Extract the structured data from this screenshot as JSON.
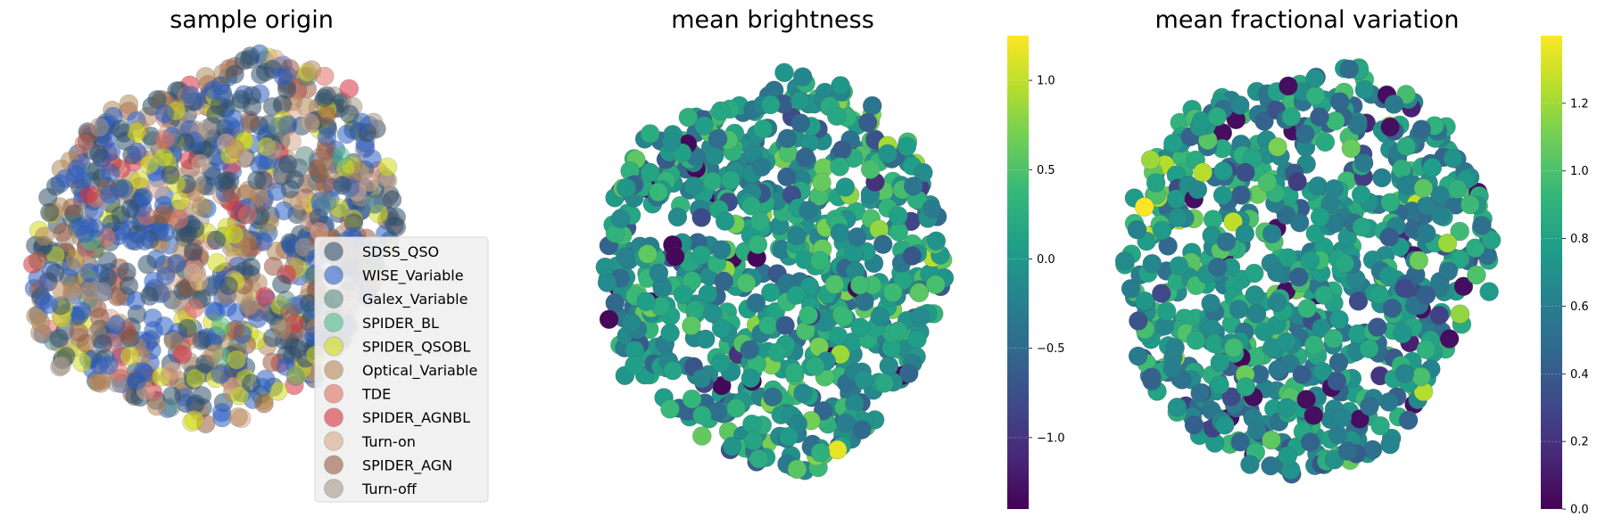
{
  "chart_data": [
    {
      "type": "scatter",
      "title": "sample origin",
      "legend_position": "lower-right",
      "categories": [
        {
          "name": "SDSS_QSO",
          "color": "#2f4f6a",
          "approx_share": 0.28
        },
        {
          "name": "WISE_Variable",
          "color": "#2b5fc4",
          "approx_share": 0.24
        },
        {
          "name": "Galex_Variable",
          "color": "#5c8a82",
          "approx_share": 0.03
        },
        {
          "name": "SPIDER_BL",
          "color": "#4fc08a",
          "approx_share": 0.01
        },
        {
          "name": "SPIDER_QSOBL",
          "color": "#d2dc1a",
          "approx_share": 0.09
        },
        {
          "name": "Optical_Variable",
          "color": "#b5895a",
          "approx_share": 0.12
        },
        {
          "name": "TDE",
          "color": "#e07060",
          "approx_share": 0.03
        },
        {
          "name": "SPIDER_AGNBL",
          "color": "#d83040",
          "approx_share": 0.03
        },
        {
          "name": "Turn-on",
          "color": "#d9a88a",
          "approx_share": 0.06
        },
        {
          "name": "SPIDER_AGN",
          "color": "#9a5a40",
          "approx_share": 0.08
        },
        {
          "name": "Turn-off",
          "color": "#a89888",
          "approx_share": 0.03
        }
      ]
    },
    {
      "type": "scatter",
      "title": "mean brightness",
      "colormap": "viridis",
      "colorbar": {
        "min": -1.4,
        "max": 1.25,
        "ticks": [
          "1.0",
          "0.5",
          "0.0",
          "−0.5",
          "−1.0"
        ],
        "tick_values": [
          1.0,
          0.5,
          0.0,
          -0.5,
          -1.0
        ]
      },
      "value_mean": 0.0,
      "value_spread": 0.35
    },
    {
      "type": "scatter",
      "title": "mean fractional variation",
      "colormap": "viridis",
      "colorbar": {
        "min": 0.0,
        "max": 1.4,
        "ticks": [
          "1.2",
          "1.0",
          "0.8",
          "0.6",
          "0.4",
          "0.2",
          "0.0"
        ],
        "tick_values": [
          1.2,
          1.0,
          0.8,
          0.6,
          0.4,
          0.2,
          0.0
        ]
      },
      "value_mean": 0.68,
      "value_spread": 0.2
    }
  ]
}
